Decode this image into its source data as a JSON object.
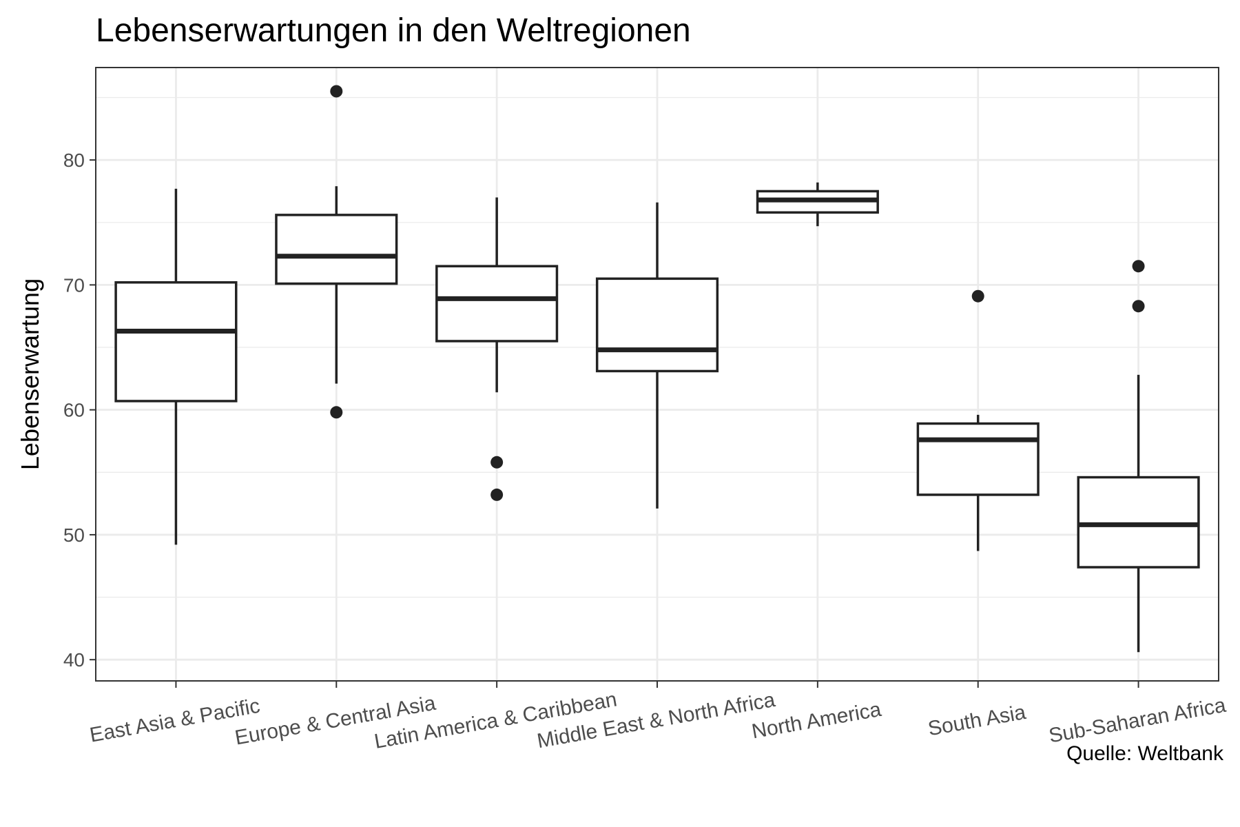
{
  "chart_data": {
    "type": "boxplot",
    "title": "Lebenserwartungen in den Weltregionen",
    "xlabel": "",
    "ylabel": "Lebenserwartung",
    "caption": "Quelle: Weltbank",
    "ylim": [
      38.3,
      87.4
    ],
    "yticks": [
      40,
      50,
      60,
      70,
      80
    ],
    "grid": true,
    "colors": {
      "box_stroke": "#222222",
      "grid": "#ebebeb",
      "panel_border": "#333333",
      "background": "#ffffff"
    },
    "categories": [
      "East Asia & Pacific",
      "Europe & Central Asia",
      "Latin America & Caribbean",
      "Middle East & North Africa",
      "North America",
      "South Asia",
      "Sub-Saharan Africa"
    ],
    "boxes": [
      {
        "category": "East Asia & Pacific",
        "whisker_low": 49.2,
        "q1": 60.7,
        "median": 66.3,
        "q3": 70.2,
        "whisker_high": 77.7,
        "outliers": []
      },
      {
        "category": "Europe & Central Asia",
        "whisker_low": 62.1,
        "q1": 70.1,
        "median": 72.3,
        "q3": 75.6,
        "whisker_high": 77.9,
        "outliers": [
          85.5,
          59.8
        ]
      },
      {
        "category": "Latin America & Caribbean",
        "whisker_low": 61.4,
        "q1": 65.5,
        "median": 68.9,
        "q3": 71.5,
        "whisker_high": 77.0,
        "outliers": [
          55.8,
          53.2
        ]
      },
      {
        "category": "Middle East & North Africa",
        "whisker_low": 52.1,
        "q1": 63.1,
        "median": 64.8,
        "q3": 70.5,
        "whisker_high": 76.6,
        "outliers": []
      },
      {
        "category": "North America",
        "whisker_low": 74.7,
        "q1": 75.8,
        "median": 76.8,
        "q3": 77.5,
        "whisker_high": 78.2,
        "outliers": []
      },
      {
        "category": "South Asia",
        "whisker_low": 48.7,
        "q1": 53.2,
        "median": 57.6,
        "q3": 58.9,
        "whisker_high": 59.6,
        "outliers": [
          69.1
        ]
      },
      {
        "category": "Sub-Saharan Africa",
        "whisker_low": 40.6,
        "q1": 47.4,
        "median": 50.8,
        "q3": 54.6,
        "whisker_high": 62.8,
        "outliers": [
          71.5,
          68.3
        ]
      }
    ]
  }
}
